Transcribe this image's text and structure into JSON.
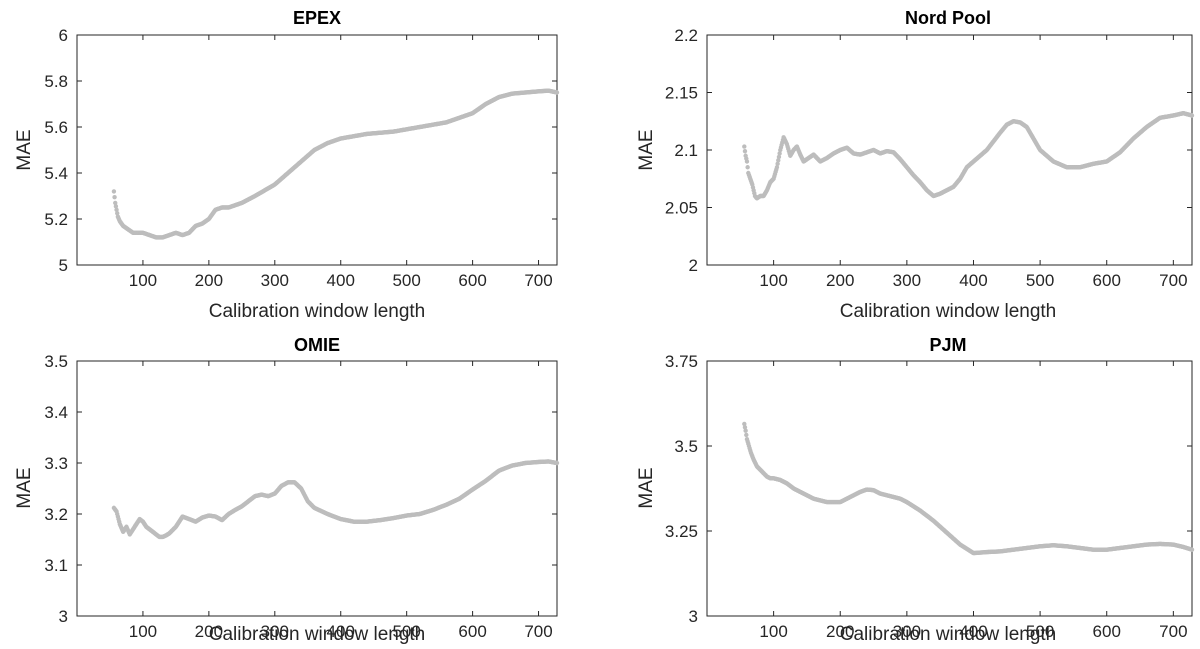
{
  "marker_color": "#bdbdbd",
  "axis_color": "#262626",
  "chart_data": [
    {
      "type": "scatter",
      "title": "EPEX",
      "xlabel": "Calibration window length",
      "ylabel": "MAE",
      "xlim": [
        0,
        728
      ],
      "ylim": [
        5,
        6
      ],
      "xticks": [
        100,
        200,
        300,
        400,
        500,
        600,
        700
      ],
      "yticks": [
        5,
        5.2,
        5.4,
        5.6,
        5.8,
        6
      ],
      "yticklabels": [
        "5",
        "5.2",
        "5.4",
        "5.6",
        "5.8",
        "6"
      ],
      "grid": false,
      "series": [
        {
          "x": [
            56,
            58,
            60,
            62,
            65,
            70,
            75,
            80,
            85,
            90,
            100,
            110,
            120,
            125,
            130,
            140,
            150,
            160,
            170,
            180,
            190,
            200,
            210,
            220,
            230,
            250,
            270,
            300,
            320,
            340,
            360,
            380,
            400,
            420,
            440,
            460,
            480,
            500,
            520,
            540,
            560,
            580,
            600,
            620,
            640,
            660,
            680,
            700,
            715,
            728
          ],
          "y": [
            5.32,
            5.27,
            5.24,
            5.21,
            5.19,
            5.17,
            5.16,
            5.15,
            5.14,
            5.14,
            5.14,
            5.13,
            5.12,
            5.12,
            5.12,
            5.13,
            5.14,
            5.13,
            5.14,
            5.17,
            5.18,
            5.2,
            5.24,
            5.25,
            5.25,
            5.27,
            5.3,
            5.35,
            5.4,
            5.45,
            5.5,
            5.53,
            5.55,
            5.56,
            5.57,
            5.575,
            5.58,
            5.59,
            5.6,
            5.61,
            5.62,
            5.64,
            5.66,
            5.7,
            5.73,
            5.745,
            5.75,
            5.755,
            5.758,
            5.75
          ]
        }
      ]
    },
    {
      "type": "scatter",
      "title": "Nord Pool",
      "xlabel": "Calibration window length",
      "ylabel": "MAE",
      "xlim": [
        0,
        728
      ],
      "ylim": [
        2,
        2.2
      ],
      "xticks": [
        100,
        200,
        300,
        400,
        500,
        600,
        700
      ],
      "yticks": [
        2,
        2.05,
        2.1,
        2.15,
        2.2
      ],
      "yticklabels": [
        "2",
        "2.05",
        "2.1",
        "2.15",
        "2.2"
      ],
      "grid": false,
      "series": [
        {
          "x": [
            56,
            58,
            60,
            62,
            65,
            68,
            72,
            75,
            80,
            85,
            90,
            95,
            100,
            105,
            110,
            115,
            120,
            125,
            130,
            135,
            140,
            145,
            150,
            160,
            170,
            180,
            190,
            200,
            210,
            220,
            230,
            240,
            250,
            260,
            270,
            280,
            290,
            300,
            310,
            320,
            330,
            340,
            350,
            360,
            370,
            380,
            390,
            400,
            420,
            440,
            450,
            460,
            470,
            480,
            490,
            500,
            520,
            540,
            560,
            580,
            600,
            620,
            640,
            660,
            680,
            700,
            715,
            728
          ],
          "y": [
            2.103,
            2.095,
            2.09,
            2.08,
            2.075,
            2.07,
            2.06,
            2.058,
            2.06,
            2.06,
            2.065,
            2.072,
            2.075,
            2.085,
            2.1,
            2.111,
            2.105,
            2.095,
            2.1,
            2.103,
            2.096,
            2.09,
            2.092,
            2.096,
            2.09,
            2.093,
            2.097,
            2.1,
            2.102,
            2.097,
            2.096,
            2.098,
            2.1,
            2.097,
            2.099,
            2.098,
            2.092,
            2.085,
            2.078,
            2.072,
            2.065,
            2.06,
            2.062,
            2.065,
            2.068,
            2.075,
            2.085,
            2.09,
            2.1,
            2.115,
            2.122,
            2.125,
            2.124,
            2.12,
            2.11,
            2.1,
            2.09,
            2.085,
            2.085,
            2.088,
            2.09,
            2.098,
            2.11,
            2.12,
            2.128,
            2.13,
            2.132,
            2.13
          ]
        }
      ]
    },
    {
      "type": "scatter",
      "title": "OMIE",
      "xlabel": "Calibration window length",
      "ylabel": "MAE",
      "xlim": [
        0,
        728
      ],
      "ylim": [
        3,
        3.5
      ],
      "xticks": [
        100,
        200,
        300,
        400,
        500,
        600,
        700
      ],
      "yticks": [
        3,
        3.1,
        3.2,
        3.3,
        3.4,
        3.5
      ],
      "yticklabels": [
        "3",
        "3.1",
        "3.2",
        "3.3",
        "3.4",
        "3.5"
      ],
      "grid": false,
      "series": [
        {
          "x": [
            56,
            60,
            65,
            70,
            75,
            80,
            85,
            90,
            95,
            100,
            105,
            110,
            115,
            120,
            125,
            130,
            135,
            140,
            150,
            160,
            170,
            180,
            190,
            200,
            210,
            220,
            230,
            240,
            250,
            260,
            270,
            280,
            290,
            300,
            310,
            320,
            330,
            340,
            350,
            360,
            380,
            400,
            420,
            440,
            460,
            480,
            500,
            520,
            540,
            560,
            580,
            600,
            620,
            640,
            660,
            680,
            700,
            715,
            728
          ],
          "y": [
            3.212,
            3.205,
            3.18,
            3.165,
            3.175,
            3.16,
            3.17,
            3.18,
            3.19,
            3.185,
            3.175,
            3.17,
            3.165,
            3.16,
            3.155,
            3.155,
            3.158,
            3.162,
            3.175,
            3.195,
            3.19,
            3.185,
            3.193,
            3.197,
            3.195,
            3.188,
            3.2,
            3.208,
            3.215,
            3.225,
            3.235,
            3.238,
            3.235,
            3.24,
            3.255,
            3.262,
            3.262,
            3.25,
            3.225,
            3.212,
            3.2,
            3.19,
            3.185,
            3.185,
            3.188,
            3.192,
            3.197,
            3.2,
            3.208,
            3.218,
            3.23,
            3.248,
            3.265,
            3.285,
            3.295,
            3.3,
            3.302,
            3.303,
            3.3
          ]
        }
      ]
    },
    {
      "type": "scatter",
      "title": "PJM",
      "xlabel": "Calibration window length",
      "ylabel": "MAE",
      "xlim": [
        0,
        728
      ],
      "ylim": [
        3,
        3.75
      ],
      "xticks": [
        100,
        200,
        300,
        400,
        500,
        600,
        700
      ],
      "yticks": [
        3,
        3.25,
        3.5,
        3.75
      ],
      "yticklabels": [
        "3",
        "3.25",
        "3.5",
        "3.75"
      ],
      "grid": false,
      "series": [
        {
          "x": [
            56,
            58,
            60,
            63,
            66,
            70,
            75,
            80,
            85,
            90,
            95,
            100,
            110,
            120,
            130,
            140,
            150,
            160,
            170,
            180,
            190,
            200,
            210,
            220,
            230,
            240,
            250,
            260,
            270,
            280,
            290,
            300,
            320,
            340,
            360,
            380,
            400,
            420,
            440,
            460,
            480,
            500,
            520,
            540,
            560,
            580,
            600,
            620,
            640,
            660,
            680,
            700,
            715,
            728
          ],
          "y": [
            3.565,
            3.545,
            3.52,
            3.5,
            3.48,
            3.46,
            3.44,
            3.43,
            3.42,
            3.41,
            3.405,
            3.405,
            3.4,
            3.39,
            3.375,
            3.365,
            3.355,
            3.345,
            3.34,
            3.335,
            3.335,
            3.335,
            3.345,
            3.355,
            3.365,
            3.372,
            3.37,
            3.36,
            3.355,
            3.35,
            3.345,
            3.335,
            3.31,
            3.28,
            3.245,
            3.21,
            3.185,
            3.188,
            3.19,
            3.195,
            3.2,
            3.205,
            3.208,
            3.205,
            3.2,
            3.195,
            3.195,
            3.2,
            3.205,
            3.21,
            3.212,
            3.21,
            3.203,
            3.195
          ]
        }
      ]
    }
  ]
}
